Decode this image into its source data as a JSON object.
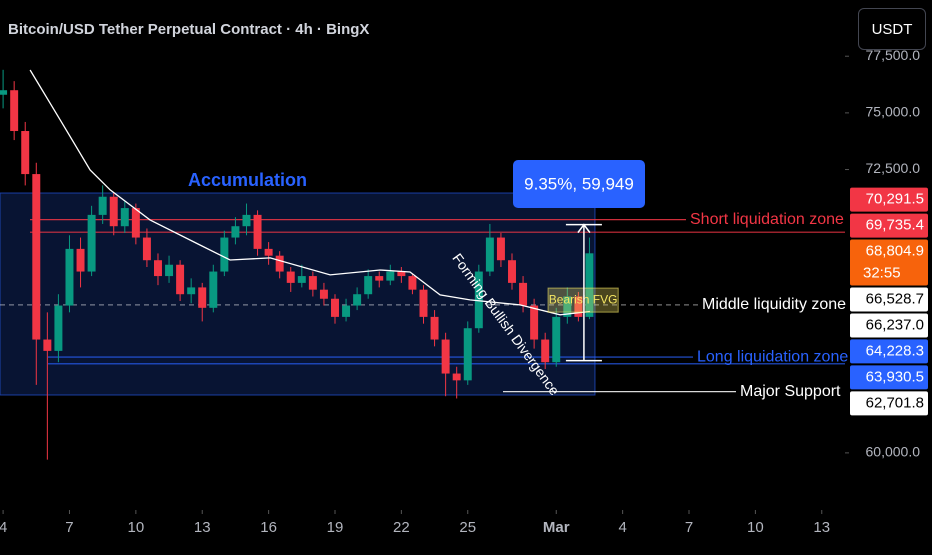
{
  "toolbar": {
    "currency": "USDT"
  },
  "chart_data": {
    "type": "candlestick",
    "title": "Bitcoin/USD Tether Perpetual Contract · 4h · BingX",
    "up_color": "#089981",
    "down_color": "#f23645",
    "x": [
      4,
      4.5,
      5,
      5.5,
      6,
      6.5,
      7,
      7.5,
      8,
      8.5,
      9,
      9.5,
      10,
      10.5,
      11,
      11.5,
      12,
      12.5,
      13,
      13.5,
      14,
      14.5,
      15,
      15.5,
      16,
      16.5,
      17,
      17.5,
      18,
      18.5,
      19,
      19.5,
      20,
      20.5,
      21,
      21.5,
      22,
      22.5,
      23,
      23.5,
      24,
      24.5,
      25,
      25.5,
      26,
      26.5,
      27,
      27.5,
      28,
      28.5,
      29,
      29.5,
      30,
      30.5
    ],
    "open": [
      75800,
      76000,
      74200,
      72300,
      65000,
      64500,
      66500,
      69000,
      68000,
      70500,
      71300,
      70000,
      70800,
      69500,
      68500,
      67800,
      68300,
      67000,
      67300,
      66400,
      68000,
      69500,
      70000,
      70500,
      69000,
      68700,
      68000,
      67500,
      67800,
      67200,
      66800,
      66000,
      66500,
      67000,
      67800,
      67600,
      68000,
      67800,
      67200,
      66000,
      65000,
      63500,
      63200,
      65500,
      68000,
      69500,
      68500,
      67500,
      66500,
      65000,
      64000,
      66000,
      66900,
      66000
    ],
    "high": [
      76900,
      76400,
      74600,
      72800,
      66200,
      67000,
      69600,
      69500,
      70900,
      71800,
      71500,
      71100,
      71000,
      69900,
      68800,
      68700,
      68500,
      67700,
      67500,
      68300,
      69800,
      70400,
      71000,
      70700,
      69300,
      68900,
      68200,
      68300,
      68000,
      67500,
      67000,
      66800,
      67300,
      68100,
      68000,
      68300,
      68200,
      67900,
      67400,
      66300,
      65300,
      63800,
      65800,
      68300,
      70100,
      69700,
      68800,
      67800,
      66800,
      65300,
      66400,
      67300,
      67100,
      69500
    ],
    "low": [
      75200,
      73800,
      71800,
      63000,
      59700,
      64000,
      66200,
      67300,
      67800,
      70100,
      69600,
      69700,
      69200,
      68200,
      67400,
      67500,
      66700,
      66600,
      65800,
      66200,
      67800,
      69200,
      69600,
      68700,
      68300,
      67700,
      67100,
      67300,
      66900,
      66500,
      65700,
      65800,
      66300,
      66800,
      67300,
      67400,
      67500,
      67000,
      65700,
      64700,
      62500,
      62400,
      63000,
      65300,
      67800,
      68200,
      67200,
      66200,
      64600,
      63700,
      63800,
      65700,
      65800,
      65900
    ],
    "close": [
      76000,
      74200,
      72300,
      65000,
      64500,
      66500,
      69000,
      68000,
      70500,
      71300,
      70000,
      70800,
      69500,
      68500,
      67800,
      68300,
      67000,
      67300,
      66400,
      68000,
      69500,
      70000,
      70500,
      69000,
      68700,
      68000,
      67500,
      67800,
      67200,
      66800,
      66000,
      66500,
      67000,
      67800,
      67600,
      68000,
      67800,
      67200,
      66000,
      65000,
      63500,
      63200,
      65500,
      68000,
      69500,
      68500,
      67500,
      66500,
      65000,
      64000,
      66000,
      66900,
      66000,
      68804.9
    ],
    "indicator": {
      "color": "#ffffff",
      "x": [
        5.22,
        6.58,
        7.93,
        8.84,
        10.64,
        12.9,
        14.26,
        16.07,
        18.78,
        21.04,
        22.39,
        23.75,
        25.1,
        27.36,
        29.17,
        30.52
      ],
      "values": [
        76890,
        74690,
        72480,
        71600,
        70280,
        69170,
        68510,
        68600,
        67850,
        68070,
        67980,
        66970,
        66750,
        66530,
        66090,
        66237.0
      ],
      "value_label": "66,237.0"
    },
    "current_price": {
      "value": 68804.9,
      "value_label": "68,804.9",
      "countdown": "32:55",
      "color": "#f7630c"
    },
    "levels": [
      {
        "label": "Short liquidation zone",
        "values": [
          70291.5,
          69735.4
        ],
        "value_labels": [
          "70,291.5",
          "69,735.4"
        ],
        "color": "#f23645"
      },
      {
        "label": "Middle liquidity zone",
        "values": [
          66528.7
        ],
        "value_labels": [
          "66,528.7"
        ],
        "color": "#ffffff",
        "line_style": "dashed"
      },
      {
        "label": "Long liquidation zone",
        "values": [
          64228.3,
          63930.5
        ],
        "value_labels": [
          "64,228.3",
          "63,930.5"
        ],
        "color": "#2962ff"
      },
      {
        "label": "Major Support",
        "values": [
          62701.8
        ],
        "value_labels": [
          "62,701.8"
        ],
        "color": "#ffffff"
      }
    ],
    "accumulation": {
      "label": "Accumulation",
      "upper": 71465,
      "lower": 62553,
      "x": [
        3.86,
        30.75
      ],
      "color": "#2962ff"
    },
    "measure": {
      "label": "9.35%, 59,949",
      "from": 64070,
      "to": 70070,
      "x": 30.25,
      "color": "#2962ff"
    },
    "fvg": {
      "label": "Bearish FVG",
      "upper": 67270,
      "lower": 66210,
      "x": [
        28.63,
        31.8
      ],
      "color": "#f5e663"
    },
    "divergence_label": "Forming Bullish Divergence",
    "xlim": [
      3.86,
      42.05
    ],
    "ylim": [
      57480,
      79980
    ],
    "xticks": [
      4,
      7,
      10,
      13,
      16,
      19,
      22,
      25,
      {
        "value": 29,
        "label": "Mar"
      },
      {
        "value": 32,
        "label": "4"
      },
      {
        "value": 35,
        "label": "7"
      },
      {
        "value": 38,
        "label": "10"
      },
      {
        "value": 41,
        "label": "13"
      }
    ],
    "yticks": [
      {
        "value": 60000,
        "label": "60,000.0"
      },
      {
        "value": 72500,
        "label": "72,500.0"
      },
      {
        "value": 75000,
        "label": "75,000.0"
      },
      {
        "value": 77500,
        "label": "77,500.0"
      }
    ]
  }
}
